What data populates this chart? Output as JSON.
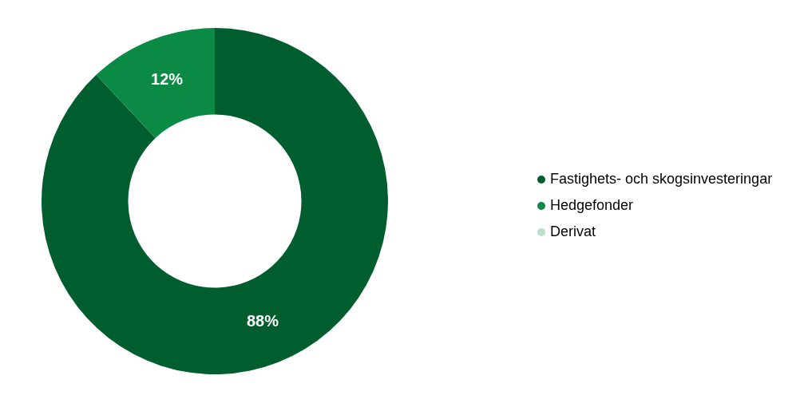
{
  "chart_data": {
    "type": "donut",
    "categories": [
      "Fastighets- och skogsinvesteringar",
      "Hedgefonder",
      "Derivat"
    ],
    "values": [
      88,
      12,
      0
    ],
    "colors": [
      "#005e2e",
      "#0a8a45",
      "#b9e0c8"
    ],
    "value_labels": [
      "88%",
      "12%",
      null
    ],
    "legend": "right"
  }
}
